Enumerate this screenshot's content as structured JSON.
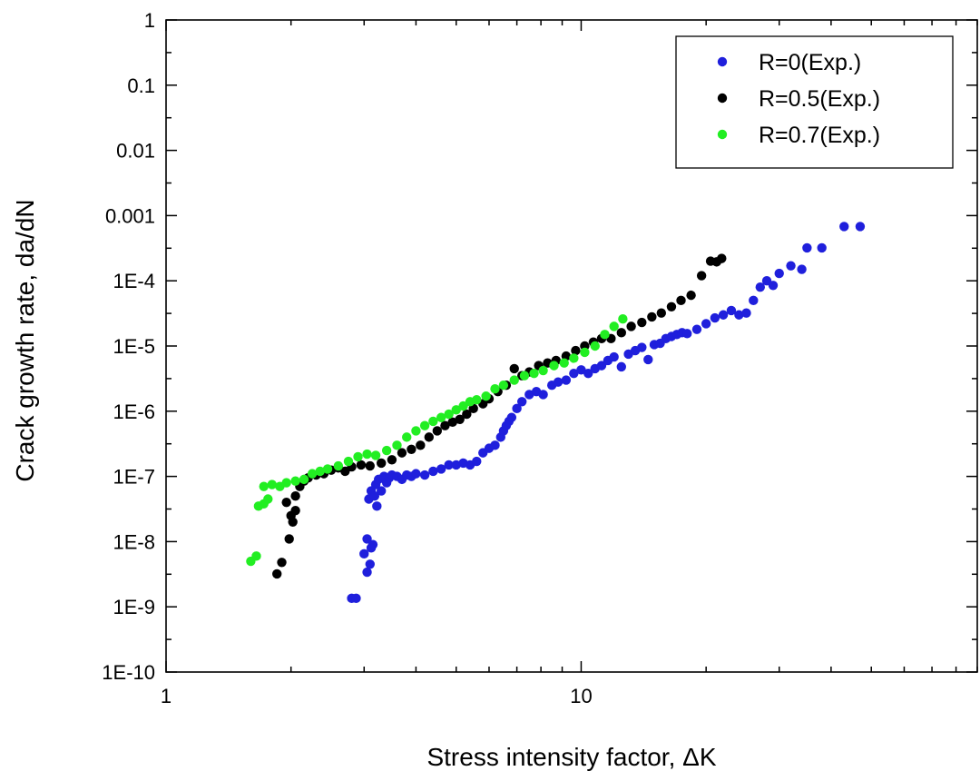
{
  "chart_data": {
    "type": "scatter",
    "title": "",
    "xlabel": "Stress intensity factor, ΔK",
    "ylabel": "Crack growth rate, da/dN",
    "xscale": "log",
    "yscale": "log",
    "xlim": [
      1,
      90
    ],
    "ylim": [
      1e-10,
      1
    ],
    "x_tick_labels": [
      "1",
      "10"
    ],
    "y_tick_labels": [
      "1",
      "0.1",
      "0.01",
      "0.001",
      "1E-4",
      "1E-5",
      "1E-6",
      "1E-7",
      "1E-8",
      "1E-9",
      "1E-10"
    ],
    "legend_position": "top-right",
    "grid": false,
    "series": [
      {
        "name": "R=0(Exp.)",
        "color": "#1f1fdc",
        "points": [
          [
            2.8,
            1.35e-09
          ],
          [
            2.87,
            1.35e-09
          ],
          [
            3.0,
            6.5e-09
          ],
          [
            3.05,
            1.1e-08
          ],
          [
            3.05,
            3.4e-09
          ],
          [
            3.1,
            4.5e-09
          ],
          [
            3.12,
            8e-09
          ],
          [
            3.15,
            9e-09
          ],
          [
            3.08,
            4.5e-08
          ],
          [
            3.12,
            6e-08
          ],
          [
            3.18,
            5e-08
          ],
          [
            3.22,
            3.5e-08
          ],
          [
            3.2,
            7.5e-08
          ],
          [
            3.25,
            9e-08
          ],
          [
            3.3,
            6e-08
          ],
          [
            3.35,
            1e-07
          ],
          [
            3.4,
            8e-08
          ],
          [
            3.45,
            9.5e-08
          ],
          [
            3.5,
            1.05e-07
          ],
          [
            3.6,
            1e-07
          ],
          [
            3.7,
            9e-08
          ],
          [
            3.8,
            1.05e-07
          ],
          [
            3.9,
            1e-07
          ],
          [
            4.0,
            1.1e-07
          ],
          [
            4.2,
            1.05e-07
          ],
          [
            4.4,
            1.2e-07
          ],
          [
            4.6,
            1.3e-07
          ],
          [
            4.8,
            1.5e-07
          ],
          [
            5.0,
            1.5e-07
          ],
          [
            5.2,
            1.6e-07
          ],
          [
            5.4,
            1.5e-07
          ],
          [
            5.6,
            1.7e-07
          ],
          [
            5.8,
            2.3e-07
          ],
          [
            6.0,
            2.7e-07
          ],
          [
            6.2,
            3e-07
          ],
          [
            6.4,
            4e-07
          ],
          [
            6.5,
            5e-07
          ],
          [
            6.6,
            6e-07
          ],
          [
            6.7,
            7e-07
          ],
          [
            6.8,
            8e-07
          ],
          [
            7.0,
            1.1e-06
          ],
          [
            7.2,
            1.4e-06
          ],
          [
            7.5,
            1.8e-06
          ],
          [
            7.8,
            2e-06
          ],
          [
            8.1,
            1.8e-06
          ],
          [
            8.5,
            2.5e-06
          ],
          [
            8.8,
            2.8e-06
          ],
          [
            9.2,
            3e-06
          ],
          [
            9.6,
            3.8e-06
          ],
          [
            10.0,
            4.3e-06
          ],
          [
            10.4,
            3.8e-06
          ],
          [
            10.8,
            4.5e-06
          ],
          [
            11.2,
            5e-06
          ],
          [
            11.6,
            6e-06
          ],
          [
            12.0,
            6.8e-06
          ],
          [
            12.5,
            4.8e-06
          ],
          [
            13.0,
            7.5e-06
          ],
          [
            13.5,
            8.5e-06
          ],
          [
            14.0,
            9.5e-06
          ],
          [
            14.5,
            6.2e-06
          ],
          [
            15.0,
            1.05e-05
          ],
          [
            15.5,
            1.1e-05
          ],
          [
            16.0,
            1.3e-05
          ],
          [
            16.5,
            1.4e-05
          ],
          [
            17.0,
            1.5e-05
          ],
          [
            17.5,
            1.6e-05
          ],
          [
            18.0,
            1.55e-05
          ],
          [
            19.0,
            1.8e-05
          ],
          [
            20.0,
            2.2e-05
          ],
          [
            21.0,
            2.7e-05
          ],
          [
            22.0,
            3e-05
          ],
          [
            23.0,
            3.5e-05
          ],
          [
            24.0,
            3e-05
          ],
          [
            25.0,
            3.2e-05
          ],
          [
            26.0,
            5e-05
          ],
          [
            27.0,
            8e-05
          ],
          [
            28.0,
            0.0001
          ],
          [
            29.0,
            8.5e-05
          ],
          [
            30.0,
            0.00013
          ],
          [
            32.0,
            0.00017
          ],
          [
            34.0,
            0.00015
          ],
          [
            35.0,
            0.00032
          ],
          [
            38.0,
            0.00032
          ],
          [
            43.0,
            0.00068
          ],
          [
            47.0,
            0.00068
          ]
        ]
      },
      {
        "name": "R=0.5(Exp.)",
        "color": "#000000",
        "points": [
          [
            1.85,
            3.2e-09
          ],
          [
            1.9,
            4.8e-09
          ],
          [
            1.95,
            4e-08
          ],
          [
            1.98,
            1.1e-08
          ],
          [
            2.0,
            2.5e-08
          ],
          [
            2.02,
            2e-08
          ],
          [
            2.05,
            5e-08
          ],
          [
            2.05,
            3e-08
          ],
          [
            2.1,
            7e-08
          ],
          [
            2.15,
            8.5e-08
          ],
          [
            2.2,
            9.5e-08
          ],
          [
            2.3,
            1.05e-07
          ],
          [
            2.4,
            1.1e-07
          ],
          [
            2.5,
            1.25e-07
          ],
          [
            2.6,
            1.35e-07
          ],
          [
            2.7,
            1.2e-07
          ],
          [
            2.8,
            1.4e-07
          ],
          [
            2.95,
            1.5e-07
          ],
          [
            3.1,
            1.45e-07
          ],
          [
            3.3,
            1.6e-07
          ],
          [
            3.5,
            1.8e-07
          ],
          [
            3.7,
            2.3e-07
          ],
          [
            3.9,
            2.6e-07
          ],
          [
            4.1,
            3e-07
          ],
          [
            4.3,
            4e-07
          ],
          [
            4.5,
            5e-07
          ],
          [
            4.7,
            6e-07
          ],
          [
            4.9,
            6.8e-07
          ],
          [
            5.1,
            7.5e-07
          ],
          [
            5.3,
            9e-07
          ],
          [
            5.5,
            1.1e-06
          ],
          [
            5.8,
            1.3e-06
          ],
          [
            6.0,
            1.55e-06
          ],
          [
            6.3,
            2e-06
          ],
          [
            6.6,
            2.5e-06
          ],
          [
            6.9,
            4.5e-06
          ],
          [
            7.2,
            3.5e-06
          ],
          [
            7.5,
            4e-06
          ],
          [
            7.9,
            5e-06
          ],
          [
            8.3,
            5.5e-06
          ],
          [
            8.7,
            6e-06
          ],
          [
            9.2,
            7e-06
          ],
          [
            9.7,
            8.5e-06
          ],
          [
            10.2,
            1e-05
          ],
          [
            10.7,
            1.15e-05
          ],
          [
            11.2,
            1.3e-05
          ],
          [
            11.8,
            1.3e-05
          ],
          [
            12.5,
            1.6e-05
          ],
          [
            13.2,
            2e-05
          ],
          [
            14.0,
            2.3e-05
          ],
          [
            14.8,
            2.8e-05
          ],
          [
            15.6,
            3.2e-05
          ],
          [
            16.5,
            4e-05
          ],
          [
            17.4,
            5e-05
          ],
          [
            18.4,
            6e-05
          ],
          [
            19.5,
            0.00012
          ],
          [
            20.5,
            0.0002
          ],
          [
            21.2,
            0.000195
          ],
          [
            21.8,
            0.00022
          ]
        ]
      },
      {
        "name": "R=0.7(Exp.)",
        "color": "#22ee22",
        "points": [
          [
            1.6,
            5e-09
          ],
          [
            1.65,
            6e-09
          ],
          [
            1.67,
            3.5e-08
          ],
          [
            1.72,
            3.8e-08
          ],
          [
            1.76,
            4.5e-08
          ],
          [
            1.72,
            7e-08
          ],
          [
            1.8,
            7.5e-08
          ],
          [
            1.88,
            7e-08
          ],
          [
            1.95,
            8e-08
          ],
          [
            2.05,
            8.5e-08
          ],
          [
            2.15,
            9e-08
          ],
          [
            2.25,
            1.1e-07
          ],
          [
            2.35,
            1.2e-07
          ],
          [
            2.45,
            1.3e-07
          ],
          [
            2.6,
            1.45e-07
          ],
          [
            2.75,
            1.7e-07
          ],
          [
            2.9,
            2e-07
          ],
          [
            3.05,
            2.2e-07
          ],
          [
            3.2,
            2.1e-07
          ],
          [
            3.4,
            2.5e-07
          ],
          [
            3.6,
            3e-07
          ],
          [
            3.8,
            4e-07
          ],
          [
            4.0,
            5e-07
          ],
          [
            4.2,
            6e-07
          ],
          [
            4.4,
            7e-07
          ],
          [
            4.6,
            8e-07
          ],
          [
            4.8,
            9e-07
          ],
          [
            5.0,
            1.05e-06
          ],
          [
            5.2,
            1.2e-06
          ],
          [
            5.4,
            1.4e-06
          ],
          [
            5.6,
            1.5e-06
          ],
          [
            5.9,
            1.7e-06
          ],
          [
            6.2,
            2.2e-06
          ],
          [
            6.5,
            2.5e-06
          ],
          [
            6.9,
            3e-06
          ],
          [
            7.3,
            3.5e-06
          ],
          [
            7.7,
            3.8e-06
          ],
          [
            8.1,
            4.2e-06
          ],
          [
            8.6,
            5e-06
          ],
          [
            9.1,
            5.5e-06
          ],
          [
            9.6,
            6.5e-06
          ],
          [
            10.2,
            8e-06
          ],
          [
            10.8,
            1e-05
          ],
          [
            11.4,
            1.5e-05
          ],
          [
            12.0,
            2e-05
          ],
          [
            12.6,
            2.6e-05
          ]
        ]
      }
    ]
  }
}
